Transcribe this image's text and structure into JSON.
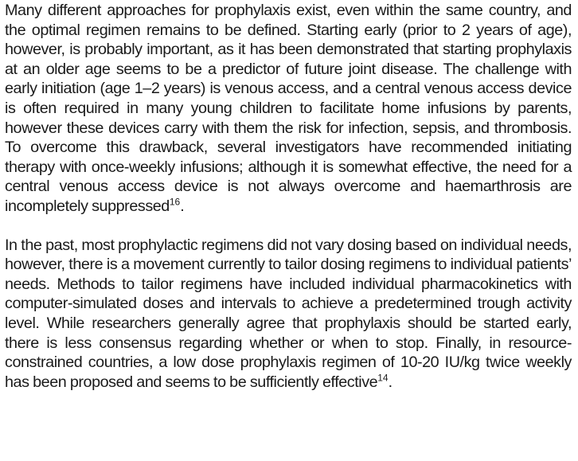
{
  "paragraphs": [
    {
      "text": "Many different approaches for prophylaxis exist, even within the same country, and the optimal regimen remains to be defined. Starting early (prior to 2 years of age), however, is probably important, as it has been demonstrated that starting prophylaxis at an older age seems to be a predictor of future joint disease. The challenge with early initiation (age 1–2 years) is venous access, and a central venous access device is often required in many young children to facilitate home infusions by parents, however these devices carry with them the risk for infection, sepsis, and thrombosis. To overcome this drawback, several investigators have recommended initiating therapy with once-weekly infusions; although it is somewhat effective, the need for a central venous access device is not always overcome and haemarthrosis are incompletely suppressed",
      "ref": "16",
      "end": "."
    },
    {
      "text": "In the past, most prophylactic regimens did not vary dosing based on individual needs, however, there is a movement currently to tailor dosing regimens to individual patients’ needs. Methods to tailor regimens have included individual pharmacokinetics with computer-simulated doses and intervals to achieve a predetermined trough activity level. While researchers generally agree that prophylaxis should be started early, there is less consensus regarding whether or when to stop. Finally, in resource-constrained countries, a low dose prophylaxis regimen of 10-20 IU/kg twice weekly has been proposed and seems to be sufficiently effective",
      "ref": "14",
      "end": "."
    }
  ]
}
